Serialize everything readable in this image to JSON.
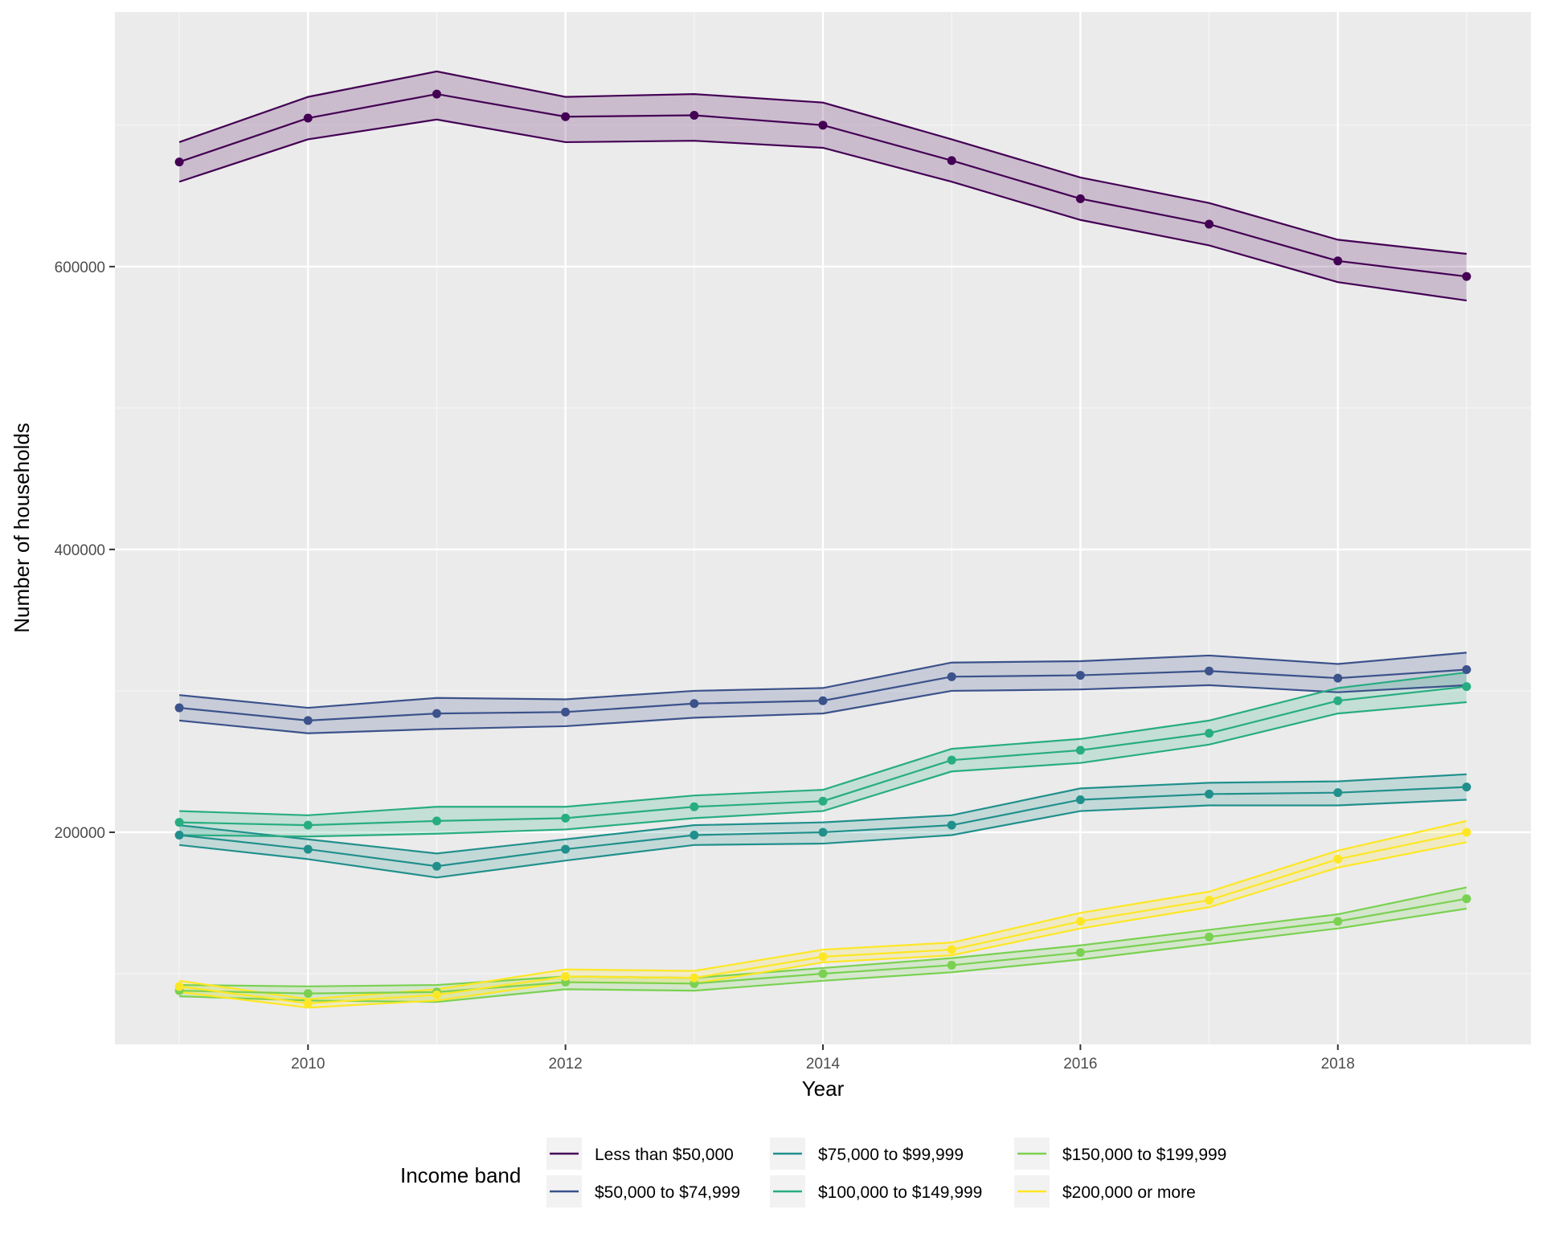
{
  "chart_data": {
    "type": "line",
    "title": "",
    "xlabel": "Year",
    "ylabel": "Number of households",
    "xlim": [
      2008.5,
      2019.5
    ],
    "ylim": [
      50000,
      780000
    ],
    "x_ticks": [
      2010,
      2012,
      2014,
      2016,
      2018
    ],
    "y_ticks": [
      200000,
      400000,
      600000
    ],
    "x_tick_labels": [
      "2010",
      "2012",
      "2014",
      "2016",
      "2018"
    ],
    "y_tick_labels": [
      "200000",
      "400000",
      "600000"
    ],
    "x_minor_ticks": [
      2009,
      2011,
      2013,
      2015,
      2017,
      2019
    ],
    "y_minor_ticks": [
      100000,
      300000,
      500000,
      700000
    ],
    "grid": true,
    "x": [
      2009,
      2010,
      2011,
      2012,
      2013,
      2014,
      2015,
      2016,
      2017,
      2018,
      2019
    ],
    "series": [
      {
        "name": "Less than $50,000",
        "color": "#440154",
        "values": [
          674000,
          705000,
          722000,
          706000,
          707000,
          700000,
          675000,
          648000,
          630000,
          604000,
          593000
        ],
        "lower": [
          660000,
          690000,
          704000,
          688000,
          689000,
          684000,
          660000,
          633000,
          615000,
          589000,
          576000
        ],
        "upper": [
          688000,
          720000,
          738000,
          720000,
          722000,
          716000,
          690000,
          663000,
          645000,
          619000,
          609000
        ]
      },
      {
        "name": "$50,000 to $74,999",
        "color": "#3B528B",
        "values": [
          288000,
          279000,
          284000,
          285000,
          291000,
          293000,
          310000,
          311000,
          314000,
          309000,
          315000
        ],
        "lower": [
          279000,
          270000,
          273000,
          275000,
          281000,
          284000,
          300000,
          301000,
          304000,
          299000,
          304000
        ],
        "upper": [
          297000,
          288000,
          295000,
          294000,
          300000,
          302000,
          320000,
          321000,
          325000,
          319000,
          327000
        ]
      },
      {
        "name": "$75,000 to $99,999",
        "color": "#21908C",
        "values": [
          198000,
          188000,
          176000,
          188000,
          198000,
          200000,
          205000,
          223000,
          227000,
          228000,
          232000
        ],
        "lower": [
          191000,
          181000,
          168000,
          180000,
          191000,
          192000,
          198000,
          215000,
          219000,
          219000,
          223000
        ],
        "upper": [
          205000,
          195000,
          185000,
          195000,
          205000,
          207000,
          212000,
          231000,
          235000,
          236000,
          241000
        ]
      },
      {
        "name": "$100,000 to $149,999",
        "color": "#27AD81",
        "values": [
          207000,
          205000,
          208000,
          210000,
          218000,
          222000,
          251000,
          258000,
          270000,
          293000,
          303000
        ],
        "lower": [
          198000,
          197000,
          199000,
          202000,
          210000,
          215000,
          243000,
          249000,
          262000,
          284000,
          292000
        ],
        "upper": [
          215000,
          212000,
          218000,
          218000,
          226000,
          230000,
          259000,
          266000,
          279000,
          302000,
          313000
        ]
      },
      {
        "name": "$150,000 to $199,999",
        "color": "#7AD151",
        "values": [
          88000,
          86000,
          87000,
          94000,
          93000,
          100000,
          106000,
          115000,
          126000,
          137000,
          153000
        ],
        "lower": [
          84000,
          81000,
          80000,
          89000,
          88000,
          95000,
          101000,
          110000,
          121000,
          132000,
          146000
        ],
        "upper": [
          92000,
          91000,
          92000,
          98000,
          97000,
          104000,
          111000,
          120000,
          131000,
          142000,
          161000
        ]
      },
      {
        "name": "$200,000 or more",
        "color": "#FDE725",
        "values": [
          91000,
          79000,
          85000,
          98000,
          97000,
          112000,
          117000,
          137000,
          152000,
          181000,
          200000
        ],
        "lower": [
          87000,
          76000,
          81000,
          94000,
          93000,
          108000,
          113000,
          132000,
          147000,
          175000,
          193000
        ],
        "upper": [
          95000,
          82000,
          89000,
          103000,
          102000,
          117000,
          122000,
          143000,
          158000,
          187000,
          208000
        ]
      }
    ],
    "legend": {
      "title": "Income band",
      "position": "bottom",
      "items": [
        "Less than $50,000",
        "$50,000 to $74,999",
        "$75,000 to $99,999",
        "$100,000 to $149,999",
        "$150,000 to $199,999",
        "$200,000 or more"
      ]
    }
  }
}
